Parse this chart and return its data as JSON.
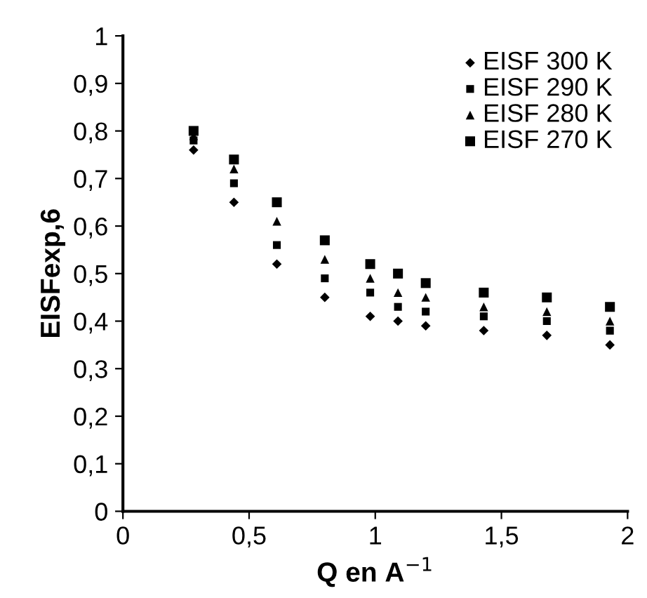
{
  "chart_data": {
    "type": "scatter",
    "xlabel": "Q en A$^{−1}$",
    "ylabel": "EISFexp,6",
    "x": [
      0.28,
      0.44,
      0.61,
      0.8,
      0.98,
      1.09,
      1.2,
      1.43,
      1.68,
      1.93
    ],
    "series": [
      {
        "name": "EISF 300 K",
        "color": "#000000",
        "marker": "diamond",
        "values": [
          0.76,
          0.65,
          0.52,
          0.45,
          0.41,
          0.4,
          0.39,
          0.38,
          0.37,
          0.35
        ]
      },
      {
        "name": "EISF 290 K",
        "color": "#000000",
        "marker": "square",
        "values": [
          0.78,
          0.69,
          0.56,
          0.49,
          0.46,
          0.43,
          0.42,
          0.41,
          0.4,
          0.38
        ]
      },
      {
        "name": "EISF 280 K",
        "color": "#000000",
        "marker": "triangle",
        "values": [
          0.79,
          0.72,
          0.61,
          0.53,
          0.49,
          0.46,
          0.45,
          0.43,
          0.42,
          0.4
        ]
      },
      {
        "name": "EISF 270 K",
        "color": "#000000",
        "marker": "square",
        "values": [
          0.8,
          0.74,
          0.65,
          0.57,
          0.52,
          0.5,
          0.48,
          0.46,
          0.45,
          0.43
        ]
      }
    ],
    "xlim": [
      0,
      2
    ],
    "ylim": [
      0,
      1
    ],
    "xticks": [
      0,
      {
        "value": 0.5,
        "label": "0,5"
      },
      1,
      {
        "value": 1.5,
        "label": "1,5"
      },
      2
    ],
    "yticks": [
      0,
      {
        "value": 0.1,
        "label": "0,1"
      },
      {
        "value": 0.2,
        "label": "0,2"
      },
      {
        "value": 0.3,
        "label": "0,3"
      },
      {
        "value": 0.4,
        "label": "0,4"
      },
      {
        "value": 0.5,
        "label": "0,5"
      },
      {
        "value": 0.6,
        "label": "0,6"
      },
      {
        "value": 0.7,
        "label": "0,7"
      },
      {
        "value": 0.8,
        "label": "0,8"
      },
      {
        "value": 0.9,
        "label": "0,9"
      },
      1
    ],
    "grid": false,
    "legend": "top right"
  }
}
